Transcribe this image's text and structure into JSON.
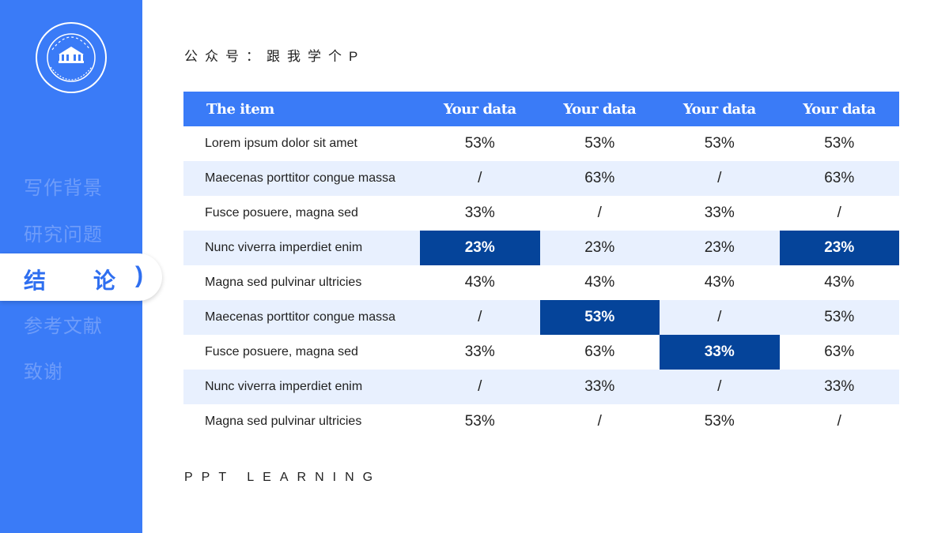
{
  "sidebar": {
    "logo": {
      "icon": "university-seal-icon"
    },
    "items": [
      {
        "label": "写作背景"
      },
      {
        "label": "研究问题"
      },
      {
        "label": "结",
        "label2": "论",
        "paren": ")"
      },
      {
        "label": "参考文献"
      },
      {
        "label": "致谢"
      }
    ]
  },
  "header": {
    "title": "公众号：跟我学个P"
  },
  "footer": {
    "text": "PPT LEARNING"
  },
  "table": {
    "headers": [
      "The item",
      "Your data",
      "Your data",
      "Your data",
      "Your data"
    ],
    "rows": [
      {
        "label": "Lorem ipsum dolor sit amet",
        "values": [
          "53%",
          "53%",
          "53%",
          "53%"
        ],
        "highlight": [
          false,
          false,
          false,
          false
        ]
      },
      {
        "label": "Maecenas porttitor congue massa",
        "values": [
          "/",
          "63%",
          "/",
          "63%"
        ],
        "highlight": [
          false,
          false,
          false,
          false
        ]
      },
      {
        "label": "Fusce posuere, magna sed",
        "values": [
          "33%",
          "/",
          "33%",
          "/"
        ],
        "highlight": [
          false,
          false,
          false,
          false
        ]
      },
      {
        "label": "Nunc viverra imperdiet enim",
        "values": [
          "23%",
          "23%",
          "23%",
          "23%"
        ],
        "highlight": [
          true,
          false,
          false,
          true
        ]
      },
      {
        "label": "Magna sed pulvinar ultricies",
        "values": [
          "43%",
          "43%",
          "43%",
          "43%"
        ],
        "highlight": [
          false,
          false,
          false,
          false
        ]
      },
      {
        "label": "Maecenas porttitor congue massa",
        "values": [
          "/",
          "53%",
          "/",
          "53%"
        ],
        "highlight": [
          false,
          true,
          false,
          false
        ]
      },
      {
        "label": "Fusce posuere, magna sed",
        "values": [
          "33%",
          "63%",
          "33%",
          "63%"
        ],
        "highlight": [
          false,
          false,
          true,
          false
        ]
      },
      {
        "label": "Nunc viverra imperdiet enim",
        "values": [
          "/",
          "33%",
          "/",
          "33%"
        ],
        "highlight": [
          false,
          false,
          false,
          false
        ]
      },
      {
        "label": "Magna sed pulvinar ultricies",
        "values": [
          "53%",
          "/",
          "53%",
          "/"
        ],
        "highlight": [
          false,
          false,
          false,
          false
        ]
      }
    ]
  },
  "colors": {
    "sidebar": "#3a7bf7",
    "header": "#3a7bf7",
    "highlight": "#05449a",
    "alt_row": "#e8f0fe",
    "nav_inactive": "#6e9cf9",
    "nav_active": "#2f6ff0"
  }
}
